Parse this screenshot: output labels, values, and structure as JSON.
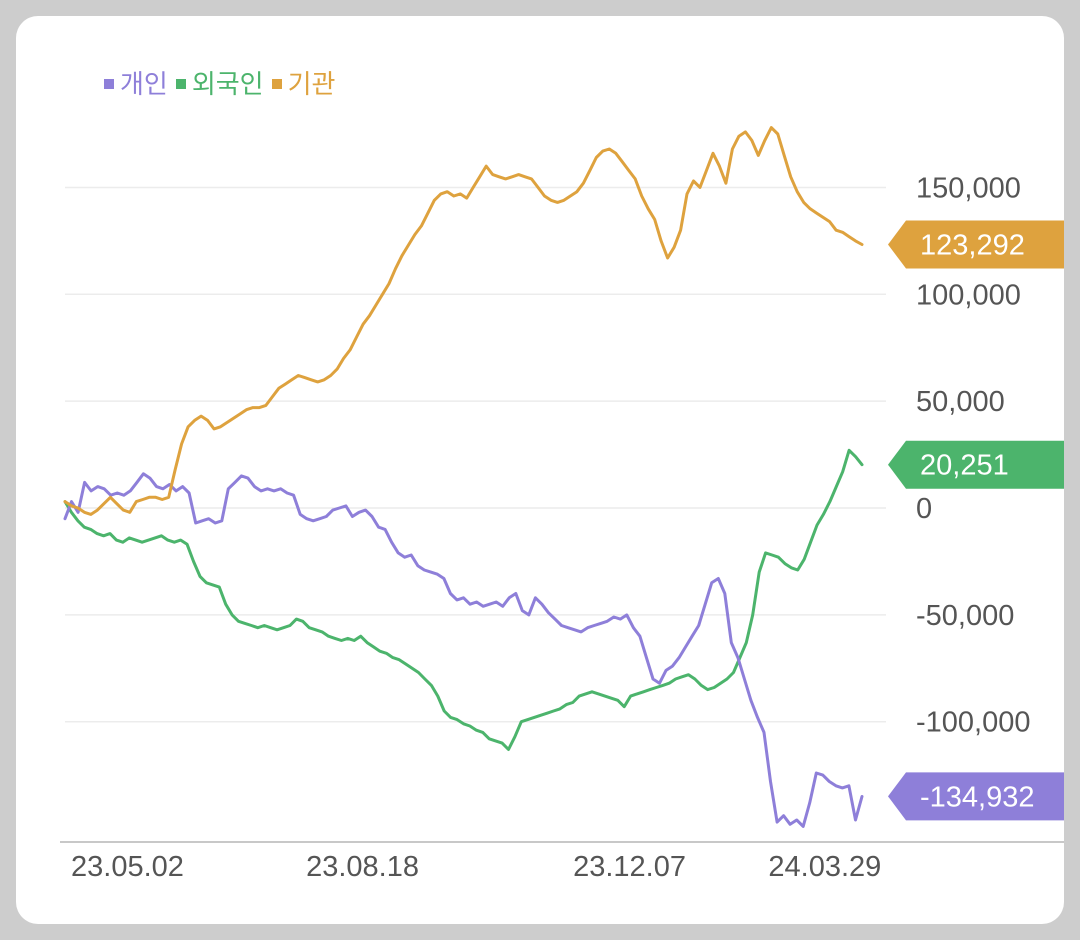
{
  "chart_data": {
    "type": "line",
    "title": "",
    "xlabel": "",
    "ylabel": "",
    "x_ticks": [
      "23.05.02",
      "23.08.18",
      "23.12.07",
      "24.03.29"
    ],
    "y_ticks": [
      150000,
      100000,
      50000,
      0,
      -50000,
      -100000
    ],
    "y_tick_labels": [
      "150,000",
      "100,000",
      "50,000",
      "0",
      "-50,000",
      "-100,000"
    ],
    "ylim": [
      -156000,
      183000
    ],
    "grid": true,
    "legend_position": "top-left",
    "series": [
      {
        "name": "개인",
        "color": "#8e7fd9",
        "last_value": -134932,
        "last_label": "-134,932",
        "values": [
          -5000,
          3000,
          -2000,
          12000,
          8000,
          10000,
          9000,
          6000,
          7000,
          6000,
          8000,
          12000,
          16000,
          14000,
          10000,
          9000,
          11000,
          8000,
          10000,
          7000,
          -7000,
          -6000,
          -5000,
          -7000,
          -6000,
          9000,
          12000,
          15000,
          14000,
          10000,
          8000,
          9000,
          8000,
          9000,
          7000,
          6000,
          -3000,
          -5000,
          -6000,
          -5000,
          -4000,
          -1000,
          0,
          1000,
          -4000,
          -2000,
          -1000,
          -4000,
          -9000,
          -10000,
          -16000,
          -21000,
          -23000,
          -22000,
          -27000,
          -29000,
          -30000,
          -31000,
          -33000,
          -40000,
          -43000,
          -42000,
          -45000,
          -44000,
          -46000,
          -45000,
          -44000,
          -46000,
          -42000,
          -40000,
          -48000,
          -50000,
          -42000,
          -45000,
          -49000,
          -52000,
          -55000,
          -56000,
          -57000,
          -58000,
          -56000,
          -55000,
          -54000,
          -53000,
          -51000,
          -52000,
          -50000,
          -56000,
          -60000,
          -70000,
          -80000,
          -82000,
          -76000,
          -74000,
          -70000,
          -65000,
          -60000,
          -55000,
          -45000,
          -35000,
          -33000,
          -40000,
          -63000,
          -70000,
          -80000,
          -90000,
          -98000,
          -105000,
          -128000,
          -147000,
          -144000,
          -148000,
          -146000,
          -149000,
          -138000,
          -124000,
          -125000,
          -128000,
          -130000,
          -131000,
          -130000,
          -146000,
          -135000
        ]
      },
      {
        "name": "외국인",
        "color": "#4cb46c",
        "last_value": 20251,
        "last_label": "20,251",
        "values": [
          3000,
          -2000,
          -6000,
          -9000,
          -10000,
          -12000,
          -13000,
          -12000,
          -15000,
          -16000,
          -14000,
          -15000,
          -16000,
          -15000,
          -14000,
          -13000,
          -15000,
          -16000,
          -15000,
          -17000,
          -25000,
          -32000,
          -35000,
          -36000,
          -37000,
          -45000,
          -50000,
          -53000,
          -54000,
          -55000,
          -56000,
          -55000,
          -56000,
          -57000,
          -56000,
          -55000,
          -52000,
          -53000,
          -56000,
          -57000,
          -58000,
          -60000,
          -61000,
          -62000,
          -61000,
          -62000,
          -60000,
          -63000,
          -65000,
          -67000,
          -68000,
          -70000,
          -71000,
          -73000,
          -75000,
          -77000,
          -80000,
          -83000,
          -88000,
          -95000,
          -98000,
          -99000,
          -101000,
          -102000,
          -104000,
          -105000,
          -108000,
          -109000,
          -110000,
          -113000,
          -107000,
          -100000,
          -99000,
          -98000,
          -97000,
          -96000,
          -95000,
          -94000,
          -92000,
          -91000,
          -88000,
          -87000,
          -86000,
          -87000,
          -88000,
          -89000,
          -90000,
          -93000,
          -88000,
          -87000,
          -86000,
          -85000,
          -84000,
          -83000,
          -82000,
          -80000,
          -79000,
          -78000,
          -80000,
          -83000,
          -85000,
          -84000,
          -82000,
          -80000,
          -77000,
          -70000,
          -63000,
          -50000,
          -30000,
          -21000,
          -22000,
          -23000,
          -26000,
          -28000,
          -29000,
          -24000,
          -16000,
          -8000,
          -3000,
          3000,
          10000,
          17000,
          27000,
          24000,
          20251
        ]
      },
      {
        "name": "기관",
        "color": "#dea23e",
        "last_value": 123292,
        "last_label": "123,292",
        "values": [
          3000,
          1000,
          0,
          -2000,
          -3000,
          -1000,
          2000,
          5000,
          2000,
          -1000,
          -2000,
          3000,
          4000,
          5000,
          5000,
          4000,
          5000,
          18000,
          30000,
          38000,
          41000,
          43000,
          41000,
          37000,
          38000,
          40000,
          42000,
          44000,
          46000,
          47000,
          47000,
          48000,
          52000,
          56000,
          58000,
          60000,
          62000,
          61000,
          60000,
          59000,
          60000,
          62000,
          65000,
          70000,
          74000,
          80000,
          86000,
          90000,
          95000,
          100000,
          105000,
          112000,
          118000,
          123000,
          128000,
          132000,
          138000,
          144000,
          147000,
          148000,
          146000,
          147000,
          145000,
          150000,
          155000,
          160000,
          156000,
          155000,
          154000,
          155000,
          156000,
          155000,
          154000,
          150000,
          146000,
          144000,
          143000,
          144000,
          146000,
          148000,
          152000,
          158000,
          164000,
          167000,
          168000,
          166000,
          162000,
          158000,
          154000,
          146000,
          140000,
          135000,
          125000,
          117000,
          122000,
          130000,
          147000,
          153000,
          150000,
          158000,
          166000,
          160000,
          152000,
          168000,
          174000,
          176000,
          172000,
          165000,
          172000,
          178000,
          175000,
          165000,
          155000,
          148000,
          143000,
          140000,
          138000,
          136000,
          134000,
          130000,
          129000,
          127000,
          125000,
          123292
        ]
      }
    ]
  }
}
